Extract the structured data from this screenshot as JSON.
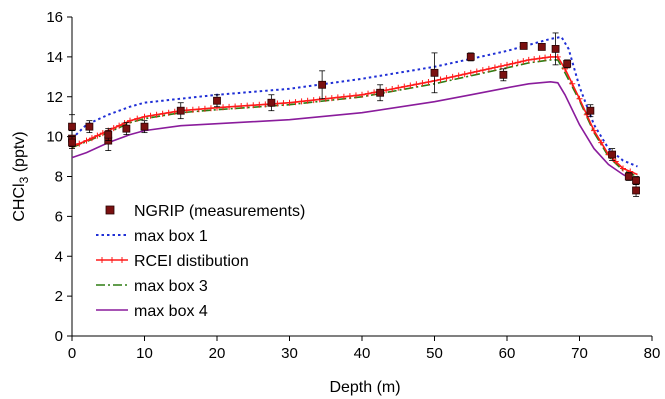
{
  "chart_data": {
    "type": "line",
    "title": "",
    "xlabel": "Depth (m)",
    "ylabel": "CHCl3 (pptv)",
    "ylabel_parts": {
      "pre": "CHCl",
      "sub": "3",
      "post": " (pptv)"
    },
    "xlim": [
      0,
      80
    ],
    "ylim": [
      0,
      16
    ],
    "xticks": [
      0,
      10,
      20,
      30,
      40,
      50,
      60,
      70,
      80
    ],
    "yticks": [
      0,
      2,
      4,
      6,
      8,
      10,
      12,
      14,
      16
    ],
    "grid": false,
    "legend_position": "left",
    "series": [
      {
        "name": "NGRIP (measurements)",
        "style": "markers",
        "color": "#7a1010",
        "x": [
          0,
          0,
          0,
          2.4,
          5,
          5,
          7.5,
          10,
          15,
          20,
          27.5,
          34.5,
          42.5,
          50,
          55,
          59.5,
          62.3,
          64.8,
          66.7,
          68.3,
          71.5,
          74.5,
          76.8,
          77.8,
          77.8
        ],
        "y": [
          10.5,
          9.9,
          9.7,
          10.5,
          9.8,
          10.1,
          10.4,
          10.5,
          11.3,
          11.8,
          11.7,
          12.6,
          12.2,
          13.2,
          14.0,
          13.1,
          14.55,
          14.5,
          14.4,
          13.65,
          11.3,
          9.1,
          8.0,
          7.8,
          7.3
        ],
        "err": [
          0.6,
          0.4,
          0.3,
          0.3,
          0.5,
          0.3,
          0.3,
          0.3,
          0.4,
          0.3,
          0.4,
          0.7,
          0.4,
          1.0,
          0.2,
          0.3,
          0.0,
          0.0,
          0.8,
          0.2,
          0.3,
          0.3,
          0.2,
          0.2,
          0.3
        ]
      },
      {
        "name": "max box 1",
        "style": "dotted",
        "color": "#1f2fd6",
        "x": [
          0,
          2,
          5,
          8,
          10,
          15,
          20,
          30,
          40,
          50,
          55,
          60,
          63,
          66,
          67.5,
          68.5,
          70,
          72,
          74,
          76,
          78
        ],
        "y": [
          9.9,
          10.6,
          11.1,
          11.5,
          11.7,
          11.9,
          12.1,
          12.4,
          12.9,
          13.5,
          13.9,
          14.3,
          14.6,
          14.9,
          15.0,
          14.4,
          12.5,
          10.6,
          9.4,
          8.8,
          8.5
        ]
      },
      {
        "name": "RCEI distibution",
        "style": "line-plus",
        "color": "#ff1a1a",
        "x": [
          0,
          2,
          5,
          8,
          10,
          15,
          20,
          30,
          40,
          50,
          55,
          60,
          63,
          66,
          67,
          68,
          70,
          72,
          74,
          76,
          78
        ],
        "y": [
          9.5,
          9.8,
          10.3,
          10.8,
          11.0,
          11.3,
          11.45,
          11.7,
          12.1,
          12.8,
          13.2,
          13.6,
          13.85,
          14.0,
          14.0,
          13.4,
          11.9,
          10.3,
          9.1,
          8.4,
          8.1
        ]
      },
      {
        "name": "max box 3",
        "style": "dashdot",
        "color": "#2e7d12",
        "x": [
          0,
          2,
          5,
          8,
          10,
          15,
          20,
          30,
          40,
          50,
          55,
          60,
          63,
          66,
          67,
          68,
          70,
          72,
          74,
          76,
          78
        ],
        "y": [
          9.45,
          9.75,
          10.2,
          10.7,
          10.9,
          11.2,
          11.35,
          11.6,
          12.0,
          12.65,
          13.05,
          13.45,
          13.7,
          13.85,
          13.85,
          13.2,
          11.8,
          10.2,
          9.0,
          8.3,
          8.0
        ]
      },
      {
        "name": "max box 4",
        "style": "solid",
        "color": "#8a1c9c",
        "x": [
          0,
          2,
          5,
          8,
          10,
          15,
          20,
          30,
          40,
          50,
          55,
          60,
          63,
          66,
          67,
          68,
          70,
          72,
          74,
          76,
          78
        ],
        "y": [
          8.95,
          9.2,
          9.7,
          10.1,
          10.3,
          10.55,
          10.65,
          10.85,
          11.2,
          11.75,
          12.1,
          12.45,
          12.65,
          12.75,
          12.7,
          12.1,
          10.6,
          9.4,
          8.6,
          8.1,
          7.7
        ]
      }
    ]
  }
}
